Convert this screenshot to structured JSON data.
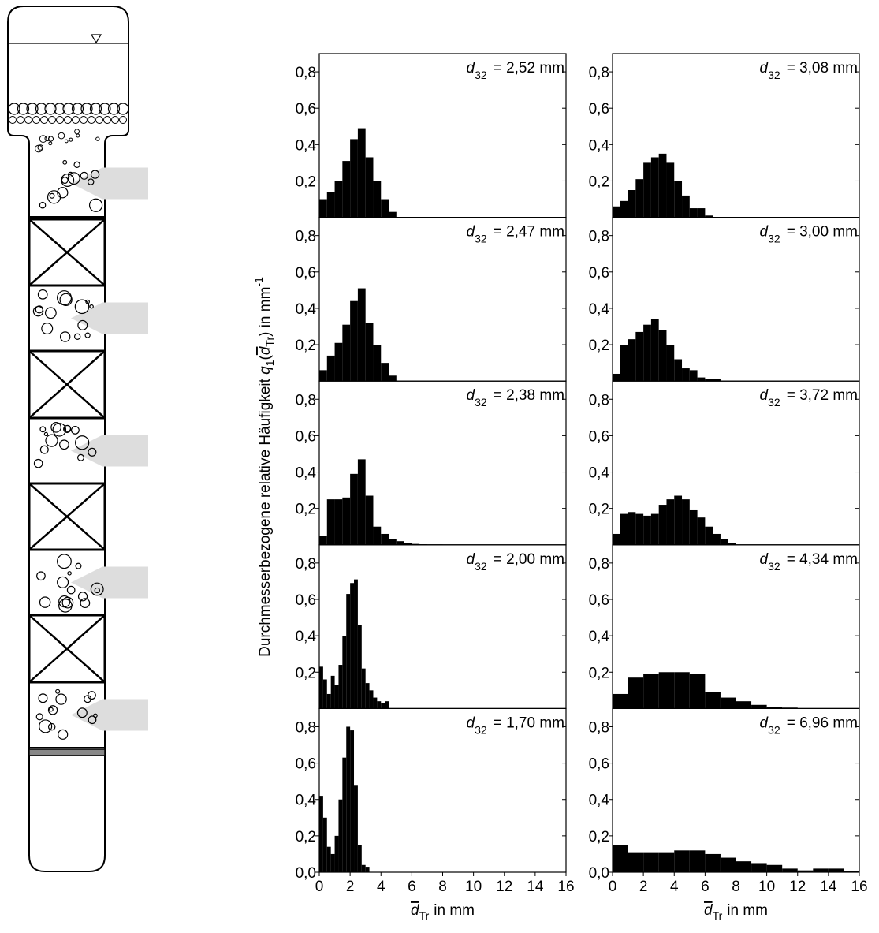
{
  "ylabel": {
    "text": "Durchmesserbezogene relative Häufigkeit",
    "symbol": "q",
    "sub": "1",
    "open": "(",
    "arg": "d",
    "argsub": "Tr",
    "unit": ") in mm",
    "exp": "-1"
  },
  "chart_data": [
    {
      "type": "histogram",
      "annotation": {
        "symbol": "d",
        "sub": "32",
        "text": "= 2,52 mm"
      },
      "color": "#000000",
      "bins": [
        0,
        0.5,
        1,
        1.5,
        2,
        2.5,
        3,
        3.5,
        4,
        4.5,
        5
      ],
      "values": [
        0.1,
        0.14,
        0.2,
        0.31,
        0.43,
        0.49,
        0.33,
        0.2,
        0.1,
        0.03
      ],
      "xlim": [
        0,
        16
      ],
      "ylim": [
        0,
        0.9
      ],
      "yticks": [
        {
          "value": 0.2,
          "label": "0,2"
        },
        {
          "value": 0.4,
          "label": "0,4"
        },
        {
          "value": 0.6,
          "label": "0,6"
        },
        {
          "value": 0.8,
          "label": "0,8"
        }
      ]
    },
    {
      "type": "histogram",
      "annotation": {
        "symbol": "d",
        "sub": "32",
        "text": "= 2,47 mm"
      },
      "color": "#000000",
      "bins": [
        0,
        0.5,
        1,
        1.5,
        2,
        2.5,
        3,
        3.5,
        4,
        4.5,
        5
      ],
      "values": [
        0.06,
        0.14,
        0.21,
        0.31,
        0.44,
        0.51,
        0.32,
        0.2,
        0.1,
        0.03
      ],
      "xlim": [
        0,
        16
      ],
      "ylim": [
        0,
        0.9
      ],
      "yticks": [
        {
          "value": 0.2,
          "label": "0,2"
        },
        {
          "value": 0.4,
          "label": "0,4"
        },
        {
          "value": 0.6,
          "label": "0,6"
        },
        {
          "value": 0.8,
          "label": "0,8"
        }
      ]
    },
    {
      "type": "histogram",
      "annotation": {
        "symbol": "d",
        "sub": "32",
        "text": "= 2,38 mm"
      },
      "color": "#000000",
      "bins": [
        0,
        0.5,
        1,
        1.5,
        2,
        2.5,
        3,
        3.5,
        4,
        4.5,
        5,
        5.5,
        6,
        6.5,
        7,
        7.5,
        8,
        8.5
      ],
      "values": [
        0.05,
        0.25,
        0.25,
        0.26,
        0.39,
        0.47,
        0.27,
        0.1,
        0.06,
        0.03,
        0.02,
        0.01,
        0.005,
        0.003,
        0.002,
        0.002,
        0.001
      ],
      "xlim": [
        0,
        16
      ],
      "ylim": [
        0,
        0.9
      ],
      "yticks": [
        {
          "value": 0.2,
          "label": "0,2"
        },
        {
          "value": 0.4,
          "label": "0,4"
        },
        {
          "value": 0.6,
          "label": "0,6"
        },
        {
          "value": 0.8,
          "label": "0,8"
        }
      ]
    },
    {
      "type": "histogram",
      "annotation": {
        "symbol": "d",
        "sub": "32",
        "text": "= 2,00 mm"
      },
      "color": "#000000",
      "bins": [
        0,
        0.25,
        0.5,
        0.75,
        1,
        1.25,
        1.5,
        1.75,
        2,
        2.25,
        2.5,
        2.75,
        3,
        3.25,
        3.5,
        3.75,
        4,
        4.25,
        4.5
      ],
      "values": [
        0.23,
        0.16,
        0.08,
        0.18,
        0.13,
        0.24,
        0.4,
        0.63,
        0.69,
        0.71,
        0.46,
        0.22,
        0.14,
        0.1,
        0.06,
        0.04,
        0.03,
        0.04
      ],
      "xlim": [
        0,
        16
      ],
      "ylim": [
        0,
        0.9
      ],
      "yticks": [
        {
          "value": 0.2,
          "label": "0,2"
        },
        {
          "value": 0.4,
          "label": "0,4"
        },
        {
          "value": 0.6,
          "label": "0,6"
        },
        {
          "value": 0.8,
          "label": "0,8"
        }
      ]
    },
    {
      "type": "histogram",
      "annotation": {
        "symbol": "d",
        "sub": "32",
        "text": "= 1,70 mm"
      },
      "color": "#000000",
      "bins": [
        0,
        0.25,
        0.5,
        0.75,
        1,
        1.25,
        1.5,
        1.75,
        2,
        2.25,
        2.5,
        2.75,
        3,
        3.25
      ],
      "values": [
        0.42,
        0.3,
        0.14,
        0.1,
        0.2,
        0.4,
        0.63,
        0.8,
        0.78,
        0.48,
        0.15,
        0.04,
        0.03
      ],
      "xlim": [
        0,
        16
      ],
      "ylim": [
        0,
        0.9
      ],
      "yticks": [
        {
          "value": 0,
          "label": "0,0"
        },
        {
          "value": 0.2,
          "label": "0,2"
        },
        {
          "value": 0.4,
          "label": "0,4"
        },
        {
          "value": 0.6,
          "label": "0,6"
        },
        {
          "value": 0.8,
          "label": "0,8"
        }
      ],
      "xticks": [
        0,
        2,
        4,
        6,
        8,
        10,
        12,
        14,
        16
      ],
      "xlabel": {
        "symbol": "d",
        "sub": "Tr",
        "text": "in mm"
      }
    },
    {
      "type": "histogram",
      "annotation": {
        "symbol": "d",
        "sub": "32",
        "text": "= 3,08 mm"
      },
      "color": "#000000",
      "bins": [
        0,
        0.5,
        1,
        1.5,
        2,
        2.5,
        3,
        3.5,
        4,
        4.5,
        5,
        5.5,
        6,
        6.5
      ],
      "values": [
        0.06,
        0.09,
        0.15,
        0.21,
        0.3,
        0.33,
        0.35,
        0.3,
        0.2,
        0.12,
        0.05,
        0.05,
        0.01
      ],
      "xlim": [
        0,
        16
      ],
      "ylim": [
        0,
        0.9
      ],
      "yticks": [
        {
          "value": 0.2,
          "label": "0,2"
        },
        {
          "value": 0.4,
          "label": "0,4"
        },
        {
          "value": 0.6,
          "label": "0,6"
        },
        {
          "value": 0.8,
          "label": "0,8"
        }
      ]
    },
    {
      "type": "histogram",
      "annotation": {
        "symbol": "d",
        "sub": "32",
        "text": "= 3,00 mm"
      },
      "color": "#000000",
      "bins": [
        0,
        0.5,
        1,
        1.5,
        2,
        2.5,
        3,
        3.5,
        4,
        4.5,
        5,
        5.5,
        6,
        6.5,
        7
      ],
      "values": [
        0.04,
        0.2,
        0.23,
        0.27,
        0.31,
        0.34,
        0.28,
        0.2,
        0.12,
        0.07,
        0.06,
        0.02,
        0.01,
        0.01
      ],
      "xlim": [
        0,
        16
      ],
      "ylim": [
        0,
        0.9
      ],
      "yticks": [
        {
          "value": 0.2,
          "label": "0,2"
        },
        {
          "value": 0.4,
          "label": "0,4"
        },
        {
          "value": 0.6,
          "label": "0,6"
        },
        {
          "value": 0.8,
          "label": "0,8"
        }
      ]
    },
    {
      "type": "histogram",
      "annotation": {
        "symbol": "d",
        "sub": "32",
        "text": "= 3,72 mm"
      },
      "color": "#000000",
      "bins": [
        0,
        0.5,
        1,
        1.5,
        2,
        2.5,
        3,
        3.5,
        4,
        4.5,
        5,
        5.5,
        6,
        6.5,
        7,
        7.5,
        8
      ],
      "values": [
        0.06,
        0.17,
        0.18,
        0.17,
        0.16,
        0.17,
        0.22,
        0.25,
        0.27,
        0.25,
        0.19,
        0.15,
        0.1,
        0.06,
        0.03,
        0.01
      ],
      "xlim": [
        0,
        16
      ],
      "ylim": [
        0,
        0.9
      ],
      "yticks": [
        {
          "value": 0.2,
          "label": "0,2"
        },
        {
          "value": 0.4,
          "label": "0,4"
        },
        {
          "value": 0.6,
          "label": "0,6"
        },
        {
          "value": 0.8,
          "label": "0,8"
        }
      ]
    },
    {
      "type": "histogram",
      "annotation": {
        "symbol": "d",
        "sub": "32",
        "text": "= 4,34 mm"
      },
      "color": "#000000",
      "bins": [
        0,
        1,
        2,
        3,
        4,
        5,
        6,
        7,
        8,
        9,
        10,
        11,
        12
      ],
      "values": [
        0.08,
        0.17,
        0.19,
        0.2,
        0.2,
        0.19,
        0.09,
        0.06,
        0.04,
        0.02,
        0.01,
        0.005
      ],
      "xlim": [
        0,
        16
      ],
      "ylim": [
        0,
        0.9
      ],
      "yticks": [
        {
          "value": 0.2,
          "label": "0,2"
        },
        {
          "value": 0.4,
          "label": "0,4"
        },
        {
          "value": 0.6,
          "label": "0,6"
        },
        {
          "value": 0.8,
          "label": "0,8"
        }
      ]
    },
    {
      "type": "histogram",
      "annotation": {
        "symbol": "d",
        "sub": "32",
        "text": "= 6,96 mm"
      },
      "color": "#000000",
      "bins": [
        0,
        1,
        2,
        3,
        4,
        5,
        6,
        7,
        8,
        9,
        10,
        11,
        12,
        13,
        14,
        15,
        16
      ],
      "values": [
        0.15,
        0.11,
        0.11,
        0.11,
        0.12,
        0.12,
        0.1,
        0.08,
        0.06,
        0.05,
        0.04,
        0.02,
        0.01,
        0.02,
        0.02,
        0.005
      ],
      "xlim": [
        0,
        16
      ],
      "ylim": [
        0,
        0.9
      ],
      "yticks": [
        {
          "value": 0,
          "label": "0,0"
        },
        {
          "value": 0.2,
          "label": "0,2"
        },
        {
          "value": 0.4,
          "label": "0,4"
        },
        {
          "value": 0.6,
          "label": "0,6"
        },
        {
          "value": 0.8,
          "label": "0,8"
        }
      ],
      "xticks": [
        0,
        2,
        4,
        6,
        8,
        10,
        12,
        14,
        16
      ],
      "xlabel": {
        "symbol": "d",
        "sub": "Tr",
        "text": "in mm"
      }
    }
  ]
}
